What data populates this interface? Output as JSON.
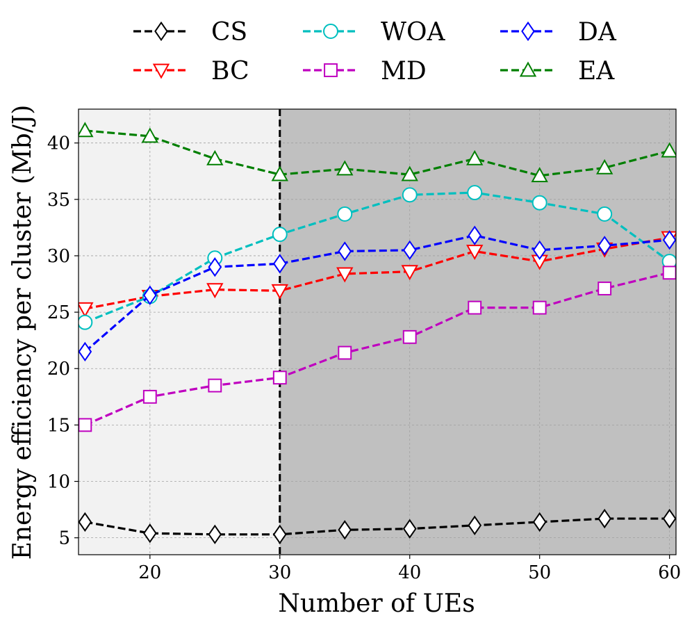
{
  "chart_data": {
    "type": "line",
    "title": "",
    "xlabel": "Number of UEs",
    "ylabel": "Energy efficiency per cluster (Mb/J)",
    "xlim": [
      14.5,
      60.5
    ],
    "ylim": [
      3.5,
      43
    ],
    "xticks": [
      20,
      30,
      40,
      50,
      60
    ],
    "yticks": [
      5,
      10,
      15,
      20,
      25,
      30,
      35,
      40
    ],
    "grid": true,
    "shaded_regions": [
      {
        "x_range": [
          14.5,
          30
        ],
        "color": "#f2f2f2"
      },
      {
        "x_range": [
          30,
          60.5
        ],
        "color": "#c0c0c0"
      }
    ],
    "vertical_line": {
      "x": 30,
      "color": "#000000",
      "style": "dashed"
    },
    "legend": {
      "position": "top-center",
      "columns": 3
    },
    "x": [
      15,
      20,
      25,
      30,
      35,
      40,
      45,
      50,
      55,
      60
    ],
    "series": [
      {
        "name": "CS",
        "color": "#000000",
        "marker": "diamond",
        "values": [
          6.4,
          5.4,
          5.3,
          5.3,
          5.7,
          5.8,
          6.1,
          6.4,
          6.7,
          6.7
        ]
      },
      {
        "name": "BC",
        "color": "#ff0000",
        "marker": "triangle-down",
        "values": [
          25.3,
          26.4,
          27.0,
          26.9,
          28.4,
          28.6,
          30.4,
          29.5,
          30.6,
          31.6
        ]
      },
      {
        "name": "WOA",
        "color": "#00bfbf",
        "marker": "circle",
        "values": [
          24.1,
          26.4,
          29.8,
          31.9,
          33.7,
          35.4,
          35.6,
          34.7,
          33.7,
          29.5
        ]
      },
      {
        "name": "MD",
        "color": "#bf00bf",
        "marker": "square",
        "values": [
          15.0,
          17.5,
          18.5,
          19.2,
          21.4,
          22.8,
          25.4,
          25.4,
          27.1,
          28.5
        ]
      },
      {
        "name": "DA",
        "color": "#0000ff",
        "marker": "diamond",
        "values": [
          21.5,
          26.5,
          29.0,
          29.3,
          30.4,
          30.5,
          31.8,
          30.5,
          30.9,
          31.4
        ]
      },
      {
        "name": "EA",
        "color": "#007f00",
        "marker": "triangle-up",
        "values": [
          41.1,
          40.6,
          38.6,
          37.2,
          37.7,
          37.2,
          38.6,
          37.1,
          37.8,
          39.3
        ]
      }
    ],
    "legend_order": [
      "CS",
      "WOA",
      "DA",
      "BC",
      "MD",
      "EA"
    ]
  }
}
